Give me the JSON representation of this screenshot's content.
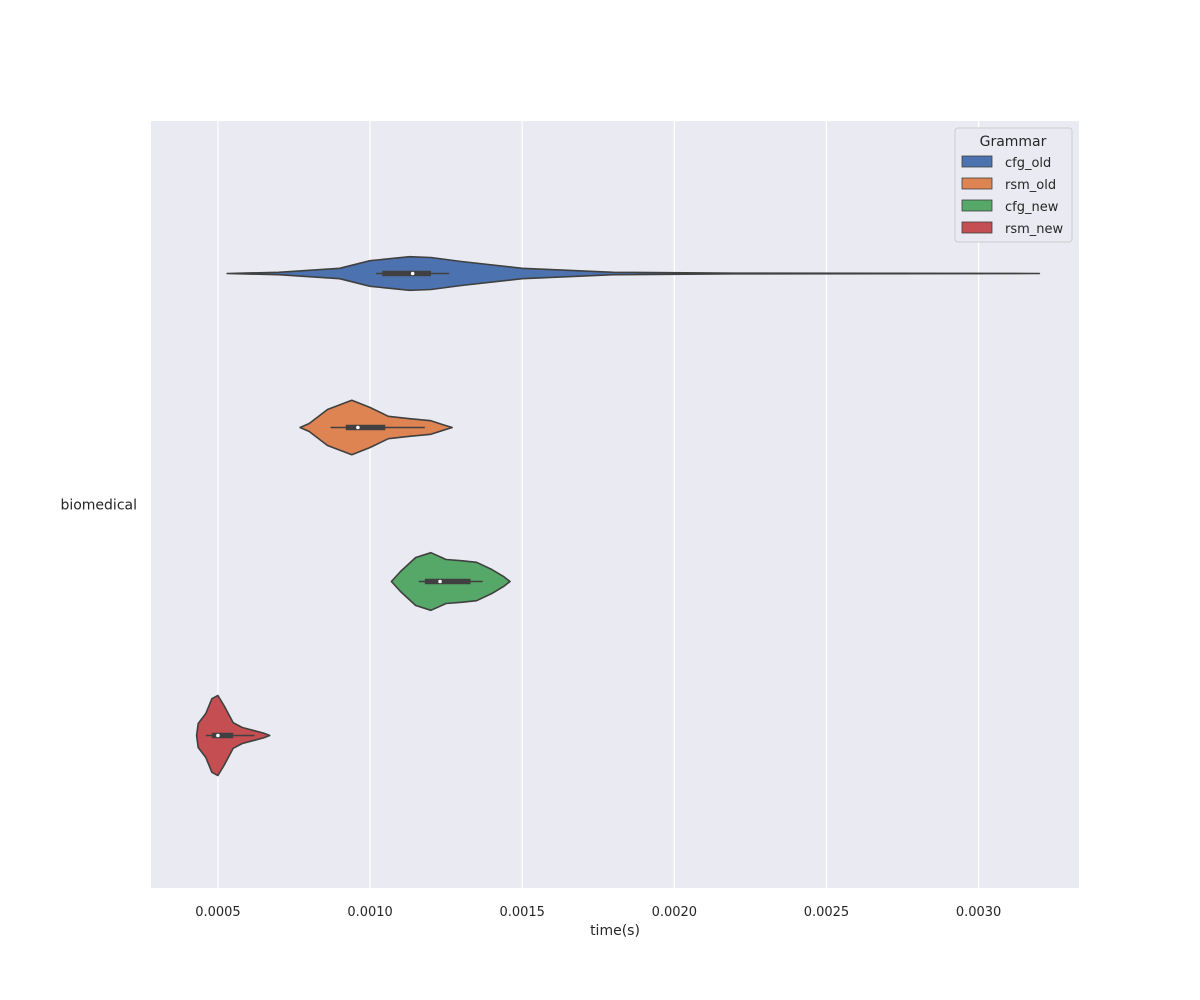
{
  "chart_data": {
    "type": "violin",
    "orientation": "horizontal",
    "title": "",
    "xlabel": "time(s)",
    "ylabel": "",
    "categories": [
      "biomedical"
    ],
    "xlim": [
      0.00028,
      0.00333
    ],
    "xticks": [
      "0.0005",
      "0.0010",
      "0.0015",
      "0.0020",
      "0.0025",
      "0.0030"
    ],
    "grid": true,
    "legend": {
      "title": "Grammar",
      "position": "top-right"
    },
    "series": [
      {
        "name": "cfg_old",
        "color": "#4c72b0",
        "category": "biomedical",
        "min": 0.00053,
        "max": 0.0032,
        "q1": 0.00104,
        "median": 0.00114,
        "q3": 0.0012,
        "whisker_low": 0.00102,
        "whisker_high": 0.00126,
        "density": [
          [
            0.00053,
            0.0
          ],
          [
            0.0007,
            0.03
          ],
          [
            0.0009,
            0.13
          ],
          [
            0.001,
            0.32
          ],
          [
            0.00113,
            0.42
          ],
          [
            0.0012,
            0.4
          ],
          [
            0.0013,
            0.3
          ],
          [
            0.0015,
            0.13
          ],
          [
            0.0018,
            0.03
          ],
          [
            0.0022,
            0.007
          ],
          [
            0.0027,
            0.004
          ],
          [
            0.0032,
            0.0
          ]
        ]
      },
      {
        "name": "rsm_old",
        "color": "#dd8452",
        "category": "biomedical",
        "min": 0.00077,
        "max": 0.00127,
        "q1": 0.00092,
        "median": 0.00096,
        "q3": 0.00105,
        "whisker_low": 0.00087,
        "whisker_high": 0.00118,
        "density": [
          [
            0.00077,
            0.0
          ],
          [
            0.0008,
            0.1
          ],
          [
            0.00086,
            0.45
          ],
          [
            0.00094,
            0.68
          ],
          [
            0.001,
            0.5
          ],
          [
            0.00106,
            0.28
          ],
          [
            0.00113,
            0.22
          ],
          [
            0.0012,
            0.17
          ],
          [
            0.00124,
            0.07
          ],
          [
            0.00127,
            0.0
          ]
        ]
      },
      {
        "name": "cfg_new",
        "color": "#55a868",
        "category": "biomedical",
        "min": 0.00107,
        "max": 0.00146,
        "q1": 0.00118,
        "median": 0.00123,
        "q3": 0.00133,
        "whisker_low": 0.00116,
        "whisker_high": 0.00137,
        "density": [
          [
            0.00107,
            0.0
          ],
          [
            0.0011,
            0.25
          ],
          [
            0.00115,
            0.6
          ],
          [
            0.0012,
            0.72
          ],
          [
            0.00125,
            0.55
          ],
          [
            0.0013,
            0.52
          ],
          [
            0.00135,
            0.48
          ],
          [
            0.0014,
            0.3
          ],
          [
            0.00144,
            0.12
          ],
          [
            0.00146,
            0.0
          ]
        ]
      },
      {
        "name": "rsm_new",
        "color": "#c44e52",
        "category": "biomedical",
        "min": 0.00043,
        "max": 0.00067,
        "q1": 0.00048,
        "median": 0.0005,
        "q3": 0.00055,
        "whisker_low": 0.00046,
        "whisker_high": 0.00062,
        "density": [
          [
            0.00043,
            0.0
          ],
          [
            0.000435,
            0.3
          ],
          [
            0.00046,
            0.55
          ],
          [
            0.00048,
            0.92
          ],
          [
            0.0005,
            1.0
          ],
          [
            0.00052,
            0.75
          ],
          [
            0.00055,
            0.32
          ],
          [
            0.00058,
            0.2
          ],
          [
            0.00062,
            0.12
          ],
          [
            0.00065,
            0.06
          ],
          [
            0.00067,
            0.0
          ]
        ]
      }
    ]
  }
}
